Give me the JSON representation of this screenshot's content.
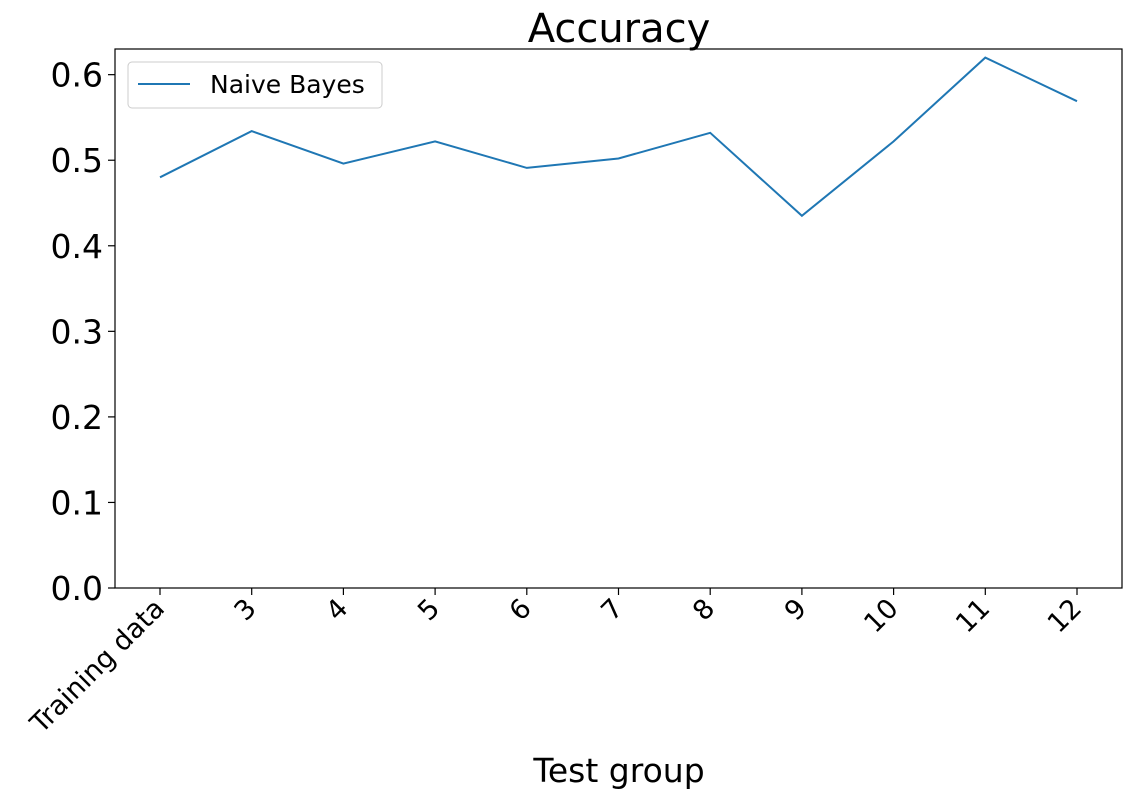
{
  "chart_data": {
    "type": "line",
    "title": "Accuracy",
    "xlabel": "Test group",
    "ylabel": "",
    "categories": [
      "Training data",
      "3",
      "4",
      "5",
      "6",
      "7",
      "8",
      "9",
      "10",
      "11",
      "12"
    ],
    "series": [
      {
        "name": "Naive Bayes",
        "color": "#1f77b4",
        "values": [
          0.48,
          0.534,
          0.496,
          0.522,
          0.491,
          0.502,
          0.532,
          0.435,
          0.522,
          0.62,
          0.569
        ]
      }
    ],
    "ylim": [
      0.0,
      0.63
    ],
    "yticks": [
      "0.0",
      "0.1",
      "0.2",
      "0.3",
      "0.4",
      "0.5",
      "0.6"
    ],
    "grid": false,
    "legend_position": "top-left"
  }
}
